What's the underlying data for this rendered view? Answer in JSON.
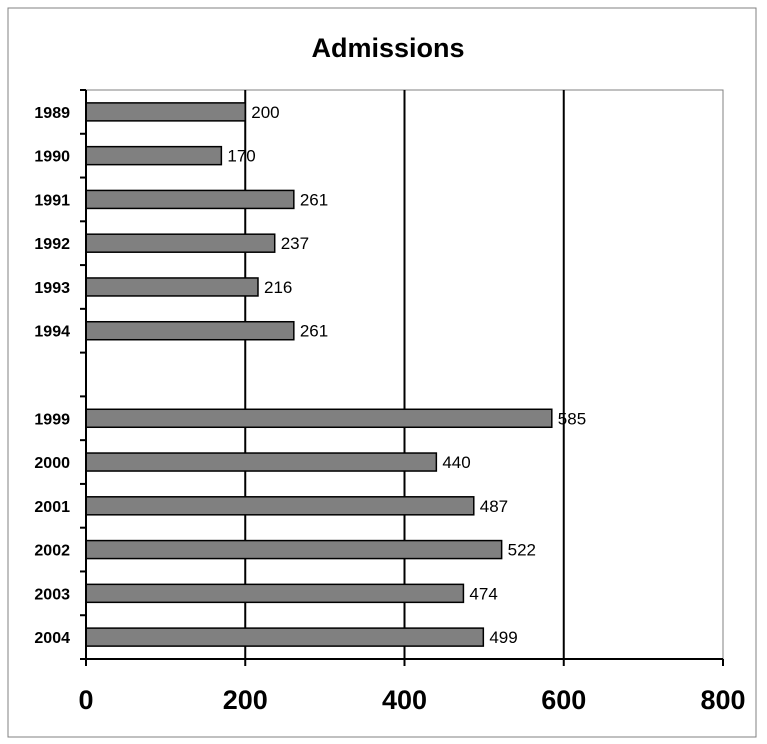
{
  "chart_data": {
    "type": "bar",
    "orientation": "horizontal",
    "title": "Admissions",
    "categories": [
      "1989",
      "1990",
      "1991",
      "1992",
      "1993",
      "1994",
      "",
      "1999",
      "2000",
      "2001",
      "2002",
      "2003",
      "2004"
    ],
    "values": [
      200,
      170,
      261,
      237,
      216,
      261,
      null,
      585,
      440,
      487,
      522,
      474,
      499
    ],
    "data_labels": [
      "200",
      "170",
      "261",
      "237",
      "216",
      "261",
      "",
      "585",
      "440",
      "487",
      "522",
      "474",
      "499"
    ],
    "xlim": [
      0,
      800
    ],
    "xticks": [
      "0",
      "200",
      "400",
      "600",
      "800"
    ],
    "xlabel": "",
    "ylabel": "",
    "grid": "vertical",
    "legend": "none",
    "bar_color": "#808080",
    "border_color": "#808080"
  }
}
